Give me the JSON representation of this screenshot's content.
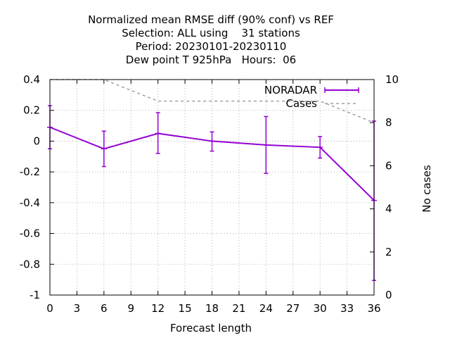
{
  "chart_data": {
    "type": "line",
    "title_lines": [
      "Normalized mean RMSE diff (90% conf) vs REF",
      "Selection: ALL using    31 stations",
      "Period: 20230101-20230110",
      "Dew point T 925hPa   Hours:  06"
    ],
    "xlabel": "Forecast length",
    "ylabel_right": "No cases",
    "xlim": [
      0,
      36
    ],
    "ylim": [
      -1,
      0.4
    ],
    "y2lim": [
      0,
      10
    ],
    "x_ticks": [
      0,
      3,
      6,
      9,
      12,
      15,
      18,
      21,
      24,
      27,
      30,
      33,
      36
    ],
    "y_ticks": [
      -1,
      -0.8,
      -0.6,
      -0.4,
      -0.2,
      0,
      0.2,
      0.4
    ],
    "y_tick_labels": [
      "-1",
      "-0.8",
      "-0.6",
      "-0.4",
      "-0.2",
      "0",
      "0.2",
      "0.4"
    ],
    "y2_ticks": [
      0,
      2,
      4,
      6,
      8,
      10
    ],
    "grid": true,
    "legend_position": "top-right",
    "series": [
      {
        "name": "NORADAR",
        "color": "#9400d3",
        "axis": "left",
        "x": [
          0,
          6,
          12,
          18,
          24,
          30,
          36
        ],
        "y": [
          0.09,
          -0.05,
          0.05,
          0.0,
          -0.025,
          -0.04,
          -0.385
        ],
        "err_low": [
          -0.05,
          -0.165,
          -0.08,
          -0.065,
          -0.21,
          -0.11,
          -0.905
        ],
        "err_high": [
          0.23,
          0.065,
          0.185,
          0.06,
          0.16,
          0.03,
          0.13
        ]
      },
      {
        "name": "Cases",
        "color": "#a0a0a0",
        "axis": "right",
        "style": "dashed",
        "x": [
          0,
          6,
          12,
          18,
          24,
          30,
          36
        ],
        "y": [
          10,
          10,
          9,
          9,
          9,
          9,
          8
        ]
      }
    ]
  }
}
